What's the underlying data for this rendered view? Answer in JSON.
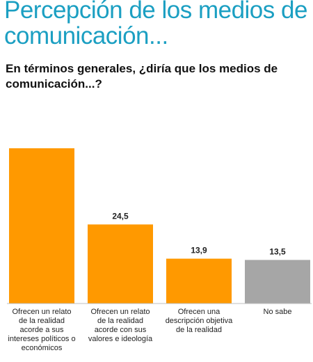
{
  "header": {
    "title": "Percepción de los medios de comunicación...",
    "subtitle": "En términos generales, ¿diría que los medios de comunicación...?"
  },
  "chart_data": {
    "type": "bar",
    "categories": [
      "Ofrecen un relato de la realidad acorde a sus intereses políticos o económicos",
      "Ofrecen un relato de la realidad acorde con sus valores e ideología",
      "Ofrecen una descripción objetiva de la realidad",
      "No sabe"
    ],
    "values": [
      48.1,
      24.5,
      13.9,
      13.5
    ],
    "data_labels": [
      "",
      "24,5",
      "13,9",
      "13,5"
    ],
    "colors": [
      "#ff9900",
      "#ff9900",
      "#ff9900",
      "#a6a6a6"
    ],
    "title": "Percepción de los medios de comunicación...",
    "subtitle": "En términos generales, ¿diría que los medios de comunicación...?",
    "xlabel": "",
    "ylabel": "",
    "ylim": [
      0,
      48.1
    ],
    "grid": false,
    "legend": "none"
  }
}
